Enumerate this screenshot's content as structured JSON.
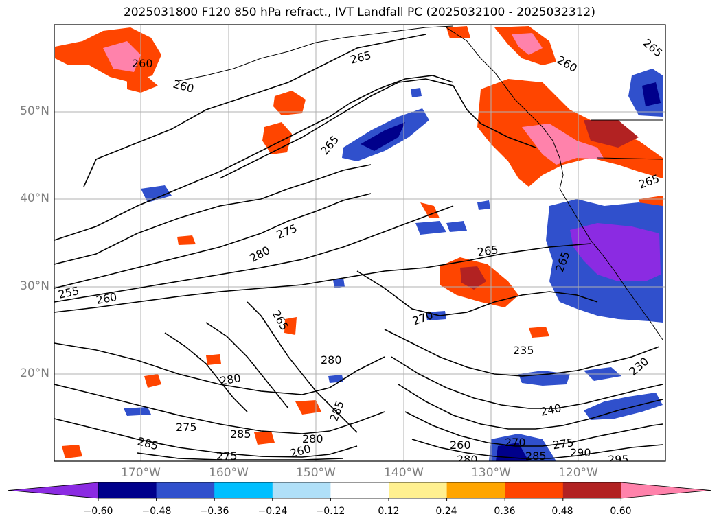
{
  "title": "2025031800 F120 850 hPa refract., IVT Landfall PC (2025032100 - 2025032312)",
  "axes": {
    "lat_labels": [
      "20°N",
      "30°N",
      "40°N",
      "50°N"
    ],
    "lon_labels": [
      "170°W",
      "160°W",
      "150°W",
      "140°W",
      "130°W",
      "120°W"
    ]
  },
  "colorbar": {
    "colors": [
      "#8b2be2",
      "#00008b",
      "#3050cc",
      "#00bfff",
      "#b0e0f8",
      "#ffffff",
      "#fff090",
      "#ffa500",
      "#ff4500",
      "#b22222",
      "#ff82ab"
    ],
    "tick_labels": [
      "−0.60",
      "−0.48",
      "−0.36",
      "−0.24",
      "−0.12",
      "0.12",
      "0.24",
      "0.36",
      "0.48",
      "0.60"
    ]
  },
  "contour_labels": [
    "265",
    "260",
    "260",
    "265",
    "260",
    "265",
    "275",
    "280",
    "255",
    "260",
    "265",
    "265",
    "270",
    "280",
    "280",
    "235",
    "230",
    "285",
    "285",
    "280",
    "275",
    "285",
    "275",
    "240",
    "260",
    "270",
    "285",
    "275",
    "290",
    "295",
    "280",
    "260",
    "265",
    "265"
  ]
}
